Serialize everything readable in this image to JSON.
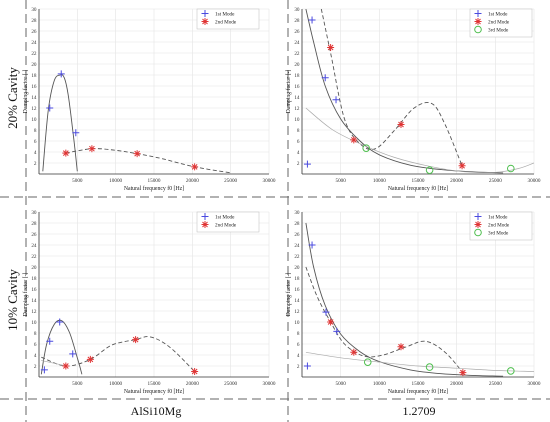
{
  "row_labels": [
    "20% Cavity",
    "10% Cavity"
  ],
  "col_labels": [
    "AlSi10Mg",
    "1.2709"
  ],
  "colors": {
    "mode1": "#4a4adf",
    "mode2": "#e03434",
    "mode3": "#4fbf4f",
    "fit": "#555555",
    "fit_light": "#aaaaaa",
    "grid": "#e4e4e4",
    "divider": "#666666"
  },
  "chart_data": [
    {
      "id": "top-left",
      "type": "scatter",
      "xlabel": "Natural frequency f0 [Hz]",
      "ylabel": "Damping factor [-]",
      "xlim": [
        0,
        30000
      ],
      "ylim": [
        0,
        30
      ],
      "xticks": [
        5000,
        10000,
        15000,
        20000,
        25000,
        30000
      ],
      "yticks": [
        2,
        4,
        6,
        8,
        10,
        12,
        14,
        16,
        18,
        20,
        22,
        24,
        26,
        28,
        30
      ],
      "grid": true,
      "legend_position": "top-right",
      "legend": [
        "1st Mode",
        "2nd Mode"
      ],
      "series": [
        {
          "name": "1st Mode",
          "marker": "plus",
          "x": [
            1400,
            2900,
            4800
          ],
          "y": [
            12,
            18.2,
            7.5
          ]
        },
        {
          "name": "2nd Mode",
          "marker": "star",
          "x": [
            3500,
            6900,
            12800,
            20300
          ],
          "y": [
            3.8,
            4.6,
            3.7,
            1.3
          ]
        }
      ],
      "fits": [
        {
          "style": "solid",
          "x": [
            500,
            1200,
            2000,
            2800,
            3300,
            3800,
            4400,
            5000
          ],
          "y": [
            0.5,
            11.5,
            17.0,
            18.0,
            17.5,
            14.5,
            8.0,
            0.5
          ]
        },
        {
          "style": "dashed",
          "x": [
            3500,
            6900,
            10000,
            12800,
            16000,
            20300,
            25000
          ],
          "y": [
            3.8,
            4.6,
            4.3,
            3.7,
            2.8,
            1.3,
            0.2
          ]
        }
      ]
    },
    {
      "id": "top-right",
      "type": "scatter",
      "xlabel": "Natural frequency f0 [Hz]",
      "ylabel": "Damping factor [-]",
      "xlim": [
        0,
        30000
      ],
      "ylim": [
        0,
        30
      ],
      "xticks": [
        5000,
        10000,
        15000,
        20000,
        25000,
        30000
      ],
      "yticks": [
        2,
        4,
        6,
        8,
        10,
        12,
        14,
        16,
        18,
        20,
        22,
        24,
        26,
        28,
        30
      ],
      "grid": true,
      "legend_position": "top-right",
      "legend": [
        "1st Mode",
        "2nd Mode",
        "3rd Mode"
      ],
      "series": [
        {
          "name": "1st Mode",
          "marker": "plus",
          "x": [
            700,
            1300,
            3000,
            4400
          ],
          "y": [
            1.8,
            28.0,
            17.5,
            13.5
          ]
        },
        {
          "name": "2nd Mode",
          "marker": "star",
          "x": [
            3700,
            6700,
            12800,
            20700
          ],
          "y": [
            23.0,
            6.2,
            9.0,
            1.5
          ]
        },
        {
          "name": "3rd Mode",
          "marker": "circle",
          "x": [
            8300,
            16500,
            27000
          ],
          "y": [
            4.7,
            0.7,
            1.0
          ]
        }
      ],
      "fits": [
        {
          "style": "solid",
          "x": [
            500,
            1500,
            3000,
            5000,
            7500,
            10000,
            14000,
            18000,
            22000,
            26000
          ],
          "y": [
            30.0,
            24.0,
            16.0,
            10.0,
            6.0,
            3.5,
            1.6,
            0.8,
            0.4,
            0.2
          ]
        },
        {
          "style": "dashed",
          "x": [
            2500,
            3700,
            5500,
            7500,
            9500,
            12000,
            14500,
            16800,
            18500,
            20700
          ],
          "y": [
            30.0,
            22.0,
            10.0,
            5.5,
            4.6,
            8.0,
            12.0,
            12.8,
            9.0,
            1.5
          ]
        },
        {
          "style": "solid_light",
          "x": [
            500,
            4000,
            8000,
            12000,
            16500,
            21000,
            25000,
            28000,
            30000
          ],
          "y": [
            12.0,
            8.0,
            5.2,
            3.0,
            1.4,
            0.4,
            0.3,
            1.0,
            2.0
          ]
        }
      ]
    },
    {
      "id": "bottom-left",
      "type": "scatter",
      "xlabel": "Natural frequency f0 [Hz]",
      "ylabel": "Damping factor [-]",
      "xlim": [
        0,
        30000
      ],
      "ylim": [
        0,
        30
      ],
      "xticks": [
        5000,
        10000,
        15000,
        20000,
        25000,
        30000
      ],
      "yticks": [
        2,
        4,
        6,
        8,
        10,
        12,
        14,
        16,
        18,
        20,
        22,
        24,
        26,
        28,
        30
      ],
      "grid": true,
      "legend_position": "top-right",
      "legend": [
        "1st Mode",
        "2nd Mode"
      ],
      "series": [
        {
          "name": "1st Mode",
          "marker": "plus",
          "x": [
            700,
            1400,
            2700,
            4400
          ],
          "y": [
            1.3,
            6.5,
            10.0,
            4.2
          ]
        },
        {
          "name": "2nd Mode",
          "marker": "star",
          "x": [
            3500,
            6700,
            12600,
            20300
          ],
          "y": [
            2.0,
            3.2,
            6.8,
            1.0
          ]
        }
      ],
      "fits": [
        {
          "style": "solid",
          "x": [
            300,
            1000,
            2000,
            3000,
            4000,
            5000,
            5600
          ],
          "y": [
            0.5,
            6.0,
            9.6,
            10.2,
            8.0,
            3.5,
            0.5
          ]
        },
        {
          "style": "dashed",
          "x": [
            300,
            3500,
            6700,
            9500,
            12600,
            14500,
            17000,
            20300
          ],
          "y": [
            3.6,
            2.0,
            3.2,
            5.8,
            6.8,
            7.3,
            5.5,
            1.0
          ]
        },
        {
          "style": "solid_light",
          "x": [
            300,
            2000,
            3500
          ],
          "y": [
            3.0,
            2.5,
            2.0
          ]
        }
      ]
    },
    {
      "id": "bottom-right",
      "type": "scatter",
      "xlabel": "Natural frequency f0 [Hz]",
      "ylabel": "Damping factor [-]",
      "xlim": [
        0,
        30000
      ],
      "ylim": [
        0,
        30
      ],
      "xticks": [
        5000,
        10000,
        15000,
        20000,
        25000,
        30000
      ],
      "yticks": [
        2,
        4,
        6,
        8,
        10,
        12,
        14,
        16,
        18,
        20,
        22,
        24,
        26,
        28,
        30
      ],
      "grid": true,
      "legend_position": "top-right",
      "legend": [
        "1st Mode",
        "2nd Mode",
        "3rd Mode"
      ],
      "series": [
        {
          "name": "1st Mode",
          "marker": "plus",
          "x": [
            700,
            1300,
            3100,
            4500
          ],
          "y": [
            2.0,
            24.0,
            11.8,
            8.3
          ]
        },
        {
          "name": "2nd Mode",
          "marker": "star",
          "x": [
            3700,
            6700,
            12800,
            20800
          ],
          "y": [
            10.0,
            4.5,
            5.5,
            0.8
          ]
        },
        {
          "name": "3rd Mode",
          "marker": "circle",
          "x": [
            8500,
            16500,
            27000
          ],
          "y": [
            2.7,
            1.8,
            1.1
          ]
        }
      ],
      "fits": [
        {
          "style": "solid",
          "x": [
            500,
            1500,
            3000,
            5000,
            7500,
            10000,
            14000,
            18000,
            22000,
            26000
          ],
          "y": [
            28.0,
            20.0,
            13.0,
            7.8,
            4.6,
            2.8,
            1.3,
            0.6,
            0.3,
            0.15
          ]
        },
        {
          "style": "dashed",
          "x": [
            500,
            2000,
            3700,
            5500,
            8000,
            10500,
            13500,
            16000,
            18500,
            20800
          ],
          "y": [
            20.0,
            14.5,
            10.0,
            6.0,
            3.8,
            4.0,
            5.5,
            6.5,
            4.5,
            0.8
          ]
        },
        {
          "style": "solid_light",
          "x": [
            500,
            5000,
            10000,
            15000,
            20000,
            25000,
            30000
          ],
          "y": [
            4.5,
            3.5,
            2.7,
            2.0,
            1.6,
            1.2,
            1.0
          ]
        }
      ]
    }
  ]
}
